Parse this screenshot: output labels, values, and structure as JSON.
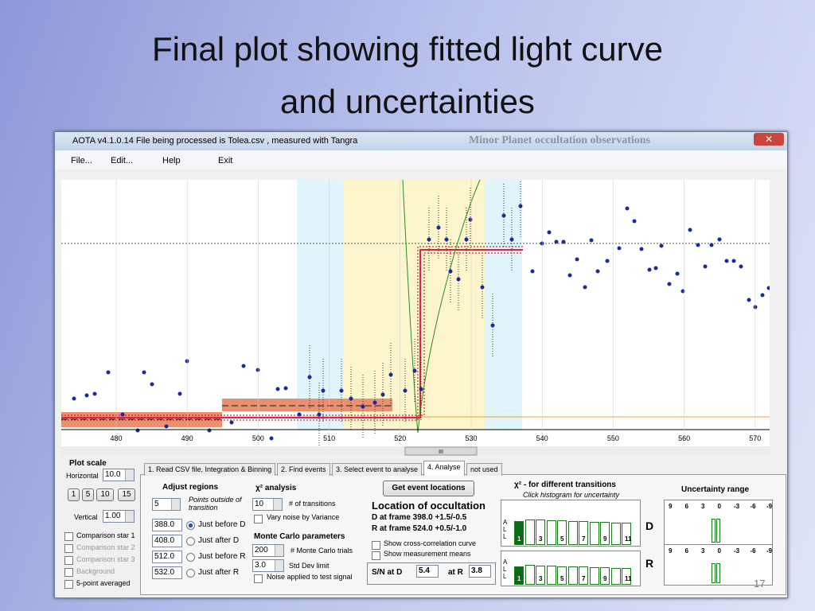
{
  "slide": {
    "title_lines": [
      "Final plot showing fitted light curve",
      "and uncertainties"
    ],
    "page_number": "17"
  },
  "window": {
    "title": "AOTA v4.1.0.14   File being processed is  Tolea.csv ,  measured with Tangra",
    "banner": "Minor Planet occultation observations"
  },
  "menu": [
    "File...",
    "Edit...",
    "Help",
    "Exit"
  ],
  "plot": {
    "x_tick_labels": [
      "480",
      "490",
      "500",
      "510",
      "520",
      "530",
      "540",
      "550",
      "560",
      "570"
    ],
    "scroll_label": "III"
  },
  "plot_scale": {
    "label": "Plot scale",
    "horizontal_label": "Horizontal",
    "horizontal": "10.0",
    "buttons": [
      "1",
      "5",
      "10",
      "15"
    ],
    "vertical_label": "Vertical",
    "vertical": "1.00"
  },
  "options": [
    "Comparison star 1",
    "Comparison star 2",
    "Comparison star 3",
    "Background",
    "5-point averaged"
  ],
  "tabs": [
    "1.  Read CSV file, Integration & Binning",
    "2. Find events",
    "3. Select event to analyse",
    "4. Analyse",
    "not used"
  ],
  "adjust": {
    "title": "Adjust regions",
    "points": "5",
    "points_label": "Points outside of transition",
    "regions": [
      {
        "value": "388.0",
        "label": "Just before D"
      },
      {
        "value": "408.0",
        "label": "Just after D"
      },
      {
        "value": "512.0",
        "label": "Just before R"
      },
      {
        "value": "532.0",
        "label": "Just after R"
      }
    ]
  },
  "chi2": {
    "title": "χ² analysis",
    "transitions": "10",
    "transitions_label": "# of transitions",
    "vary_noise": "Vary noise by Variance"
  },
  "monte_carlo": {
    "title": "Monte Carlo parameters",
    "trials": "200",
    "trials_label": "# Monte Carlo trials",
    "std_dev": "3.0",
    "std_dev_label": "Std Dev  limit",
    "noise": "Noise applied to test signal"
  },
  "location": {
    "button": "Get event locations",
    "title": "Location of occultation",
    "d": "D at frame 398.0  +1.5/-0.5",
    "r": "R at frame 524.0  +0.5/-1.0",
    "show_cross": "Show cross-correlation curve",
    "show_means": "Show measurement means",
    "sn_label": "S/N   at D",
    "sn_d": "5.4",
    "at_r": "at R",
    "sn_r": "3.8"
  },
  "transitions": {
    "title": "χ² - for different transitions",
    "subtitle": "Click histogram for uncertainty",
    "all": [
      "A",
      "L",
      "L"
    ],
    "ticks": [
      "1",
      "3",
      "5",
      "7",
      "9",
      "11"
    ],
    "d": "D",
    "r": "R"
  },
  "uncertainty": {
    "title": "Uncertainty range",
    "ticks": [
      "9",
      "6",
      "3",
      "0",
      "-3",
      "-6",
      "-9"
    ]
  }
}
